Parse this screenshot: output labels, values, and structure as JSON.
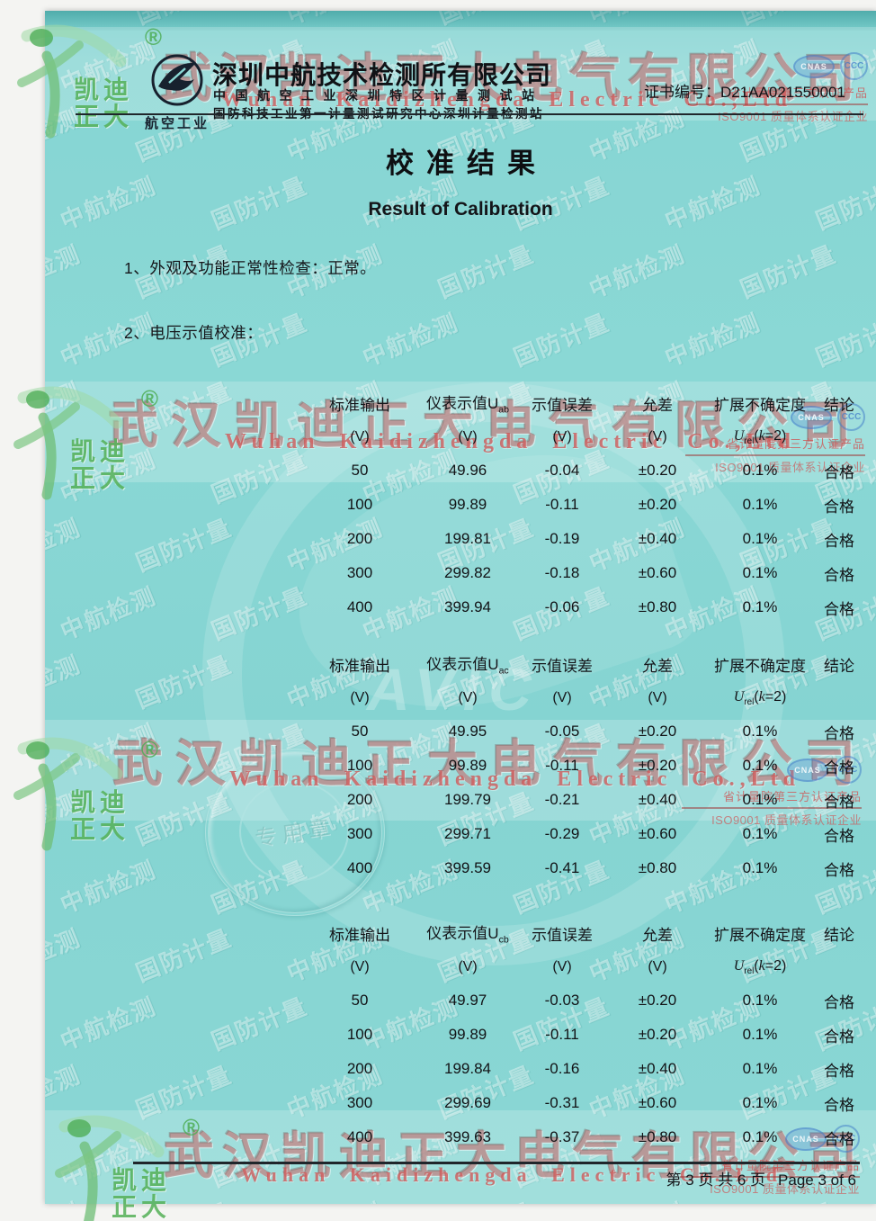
{
  "header": {
    "logo_label": "航空工业",
    "company_name": "深圳中航技术检测所有限公司",
    "subtitle1": "中国航空工业深圳特区计量测试站",
    "subtitle2": "国防科技工业第一计量测试研究中心深圳计量检测站",
    "certificate_label": "证书编号：",
    "certificate_number": "D21AA021550001"
  },
  "title": {
    "zh": "校准结果",
    "en": "Result of Calibration"
  },
  "items": [
    {
      "text": "1、外观及功能正常性检查：正常。"
    },
    {
      "text": "2、电压示值校准："
    }
  ],
  "tables": [
    {
      "col_std": "标准输出",
      "col_reading_base": "仪表示值U",
      "col_reading_sub": "ab",
      "col_error": "示值误差",
      "col_tol": "允差",
      "col_unc": "扩展不确定度",
      "col_result": "结论",
      "unit": "(V)",
      "u_base": "U",
      "u_sub": "rel",
      "u_open": "(",
      "u_k": "k",
      "u_close": "=2)",
      "rows": [
        {
          "std": "50",
          "reading": "49.96",
          "error": "-0.04",
          "tol": "±0.20",
          "unc": "0.1%",
          "result": "合格"
        },
        {
          "std": "100",
          "reading": "99.89",
          "error": "-0.11",
          "tol": "±0.20",
          "unc": "0.1%",
          "result": "合格"
        },
        {
          "std": "200",
          "reading": "199.81",
          "error": "-0.19",
          "tol": "±0.40",
          "unc": "0.1%",
          "result": "合格"
        },
        {
          "std": "300",
          "reading": "299.82",
          "error": "-0.18",
          "tol": "±0.60",
          "unc": "0.1%",
          "result": "合格"
        },
        {
          "std": "400",
          "reading": "399.94",
          "error": "-0.06",
          "tol": "±0.80",
          "unc": "0.1%",
          "result": "合格"
        }
      ]
    },
    {
      "col_std": "标准输出",
      "col_reading_base": "仪表示值U",
      "col_reading_sub": "ac",
      "col_error": "示值误差",
      "col_tol": "允差",
      "col_unc": "扩展不确定度",
      "col_result": "结论",
      "unit": "(V)",
      "u_base": "U",
      "u_sub": "rel",
      "u_open": "(",
      "u_k": "k",
      "u_close": "=2)",
      "rows": [
        {
          "std": "50",
          "reading": "49.95",
          "error": "-0.05",
          "tol": "±0.20",
          "unc": "0.1%",
          "result": "合格"
        },
        {
          "std": "100",
          "reading": "99.89",
          "error": "-0.11",
          "tol": "±0.20",
          "unc": "0.1%",
          "result": "合格"
        },
        {
          "std": "200",
          "reading": "199.79",
          "error": "-0.21",
          "tol": "±0.40",
          "unc": "0.1%",
          "result": "合格"
        },
        {
          "std": "300",
          "reading": "299.71",
          "error": "-0.29",
          "tol": "±0.60",
          "unc": "0.1%",
          "result": "合格"
        },
        {
          "std": "400",
          "reading": "399.59",
          "error": "-0.41",
          "tol": "±0.80",
          "unc": "0.1%",
          "result": "合格"
        }
      ]
    },
    {
      "col_std": "标准输出",
      "col_reading_base": "仪表示值U",
      "col_reading_sub": "cb",
      "col_error": "示值误差",
      "col_tol": "允差",
      "col_unc": "扩展不确定度",
      "col_result": "结论",
      "unit": "(V)",
      "u_base": "U",
      "u_sub": "rel",
      "u_open": "(",
      "u_k": "k",
      "u_close": "=2)",
      "rows": [
        {
          "std": "50",
          "reading": "49.97",
          "error": "-0.03",
          "tol": "±0.20",
          "unc": "0.1%",
          "result": "合格"
        },
        {
          "std": "100",
          "reading": "99.89",
          "error": "-0.11",
          "tol": "±0.20",
          "unc": "0.1%",
          "result": "合格"
        },
        {
          "std": "200",
          "reading": "199.84",
          "error": "-0.16",
          "tol": "±0.40",
          "unc": "0.1%",
          "result": "合格"
        },
        {
          "std": "300",
          "reading": "299.69",
          "error": "-0.31",
          "tol": "±0.60",
          "unc": "0.1%",
          "result": "合格"
        },
        {
          "std": "400",
          "reading": "399.63",
          "error": "-0.37",
          "tol": "±0.80",
          "unc": "0.1%",
          "result": "合格"
        }
      ]
    }
  ],
  "watermarks": {
    "company_zh": "武汉凯迪正大电气有限公司",
    "company_en": "Wuhan Kaidizhengda Electric Co.,Ltd",
    "brand_top": "凯迪",
    "brand_bottom": "正大",
    "registered": "®",
    "cert_line1": "省计量院第三方认证产品",
    "cert_line2": "ISO9001 质量体系认证企业",
    "cnas": "CNAS",
    "ccc": "CCC",
    "avic": "AVIC",
    "seal_text": "专用章",
    "pattern": [
      "中航检测",
      "国防计量"
    ]
  },
  "footer": {
    "page_zh": "第 3 页 共 6 页",
    "page_en": "Page 3 of 6"
  },
  "colors": {
    "paper": "#86d5d3",
    "accent_red": "#cc5454",
    "accent_green": "#55b158",
    "ink": "#15161a"
  }
}
